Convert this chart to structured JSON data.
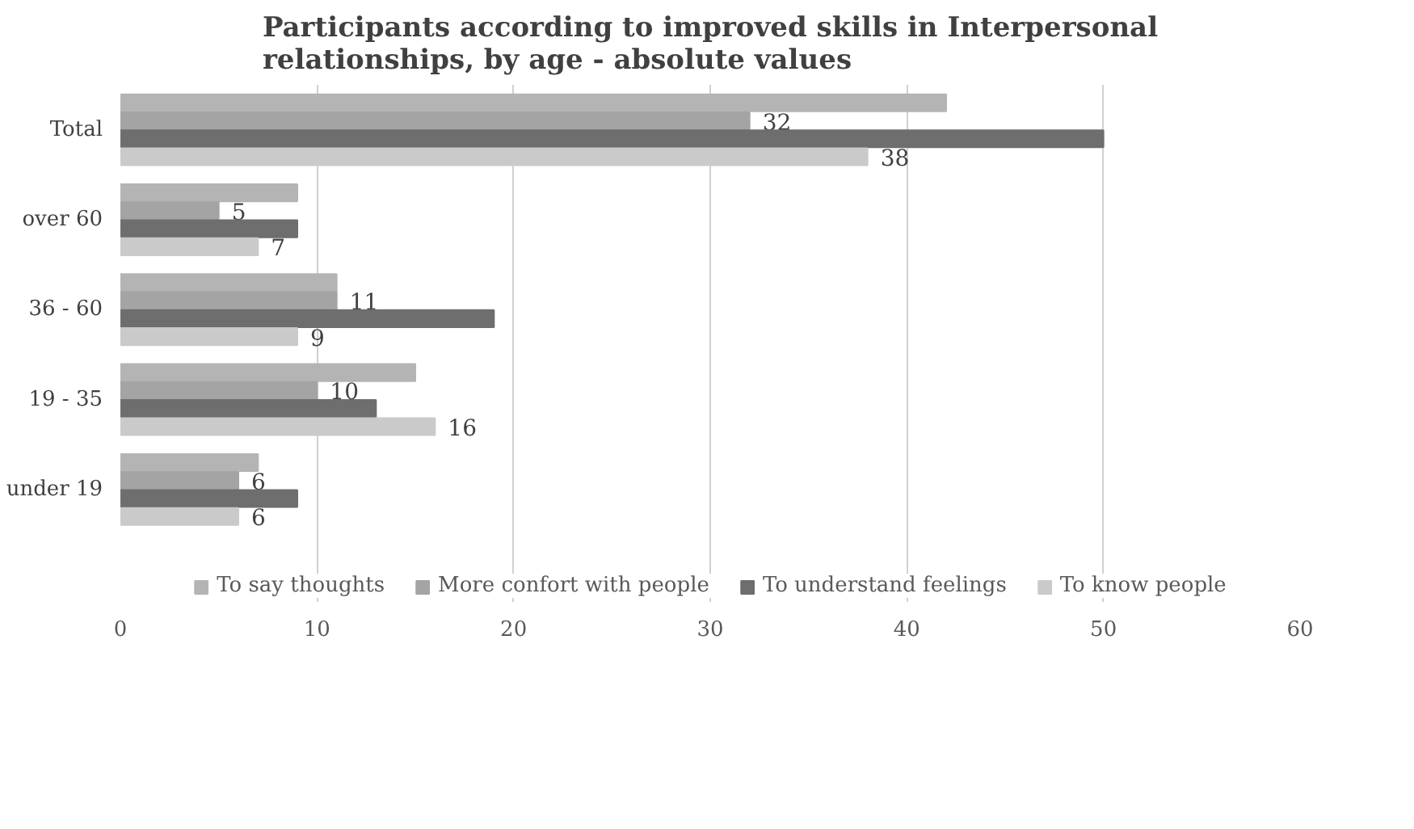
{
  "chart_data": {
    "type": "bar",
    "orientation": "horizontal",
    "title": "Participants according to improved skills in Interpersonal relationships, by age - absolute values",
    "categories": [
      "Total",
      "over 60",
      "36 - 60",
      "19 - 35",
      "under 19"
    ],
    "series": [
      {
        "name": "To say thoughts",
        "color": "#b4b4b4",
        "values": [
          42,
          9,
          11,
          15,
          7
        ]
      },
      {
        "name": "More confort with people",
        "color": "#a4a4a4",
        "values": [
          32,
          5,
          11,
          10,
          6
        ],
        "value_labels": [
          "32",
          "5",
          "11",
          "10",
          "6"
        ]
      },
      {
        "name": "To understand feelings",
        "color": "#6e6e6e",
        "values": [
          50,
          9,
          19,
          13,
          9
        ]
      },
      {
        "name": "To know people",
        "color": "#cacaca",
        "values": [
          38,
          7,
          9,
          16,
          6
        ],
        "value_labels": [
          "38",
          "7",
          "9",
          "16",
          "6"
        ]
      }
    ],
    "xlim": [
      0,
      60
    ],
    "xticks": [
      0,
      10,
      20,
      30,
      40,
      50,
      60
    ],
    "grid": "x",
    "legend": "bottom"
  }
}
